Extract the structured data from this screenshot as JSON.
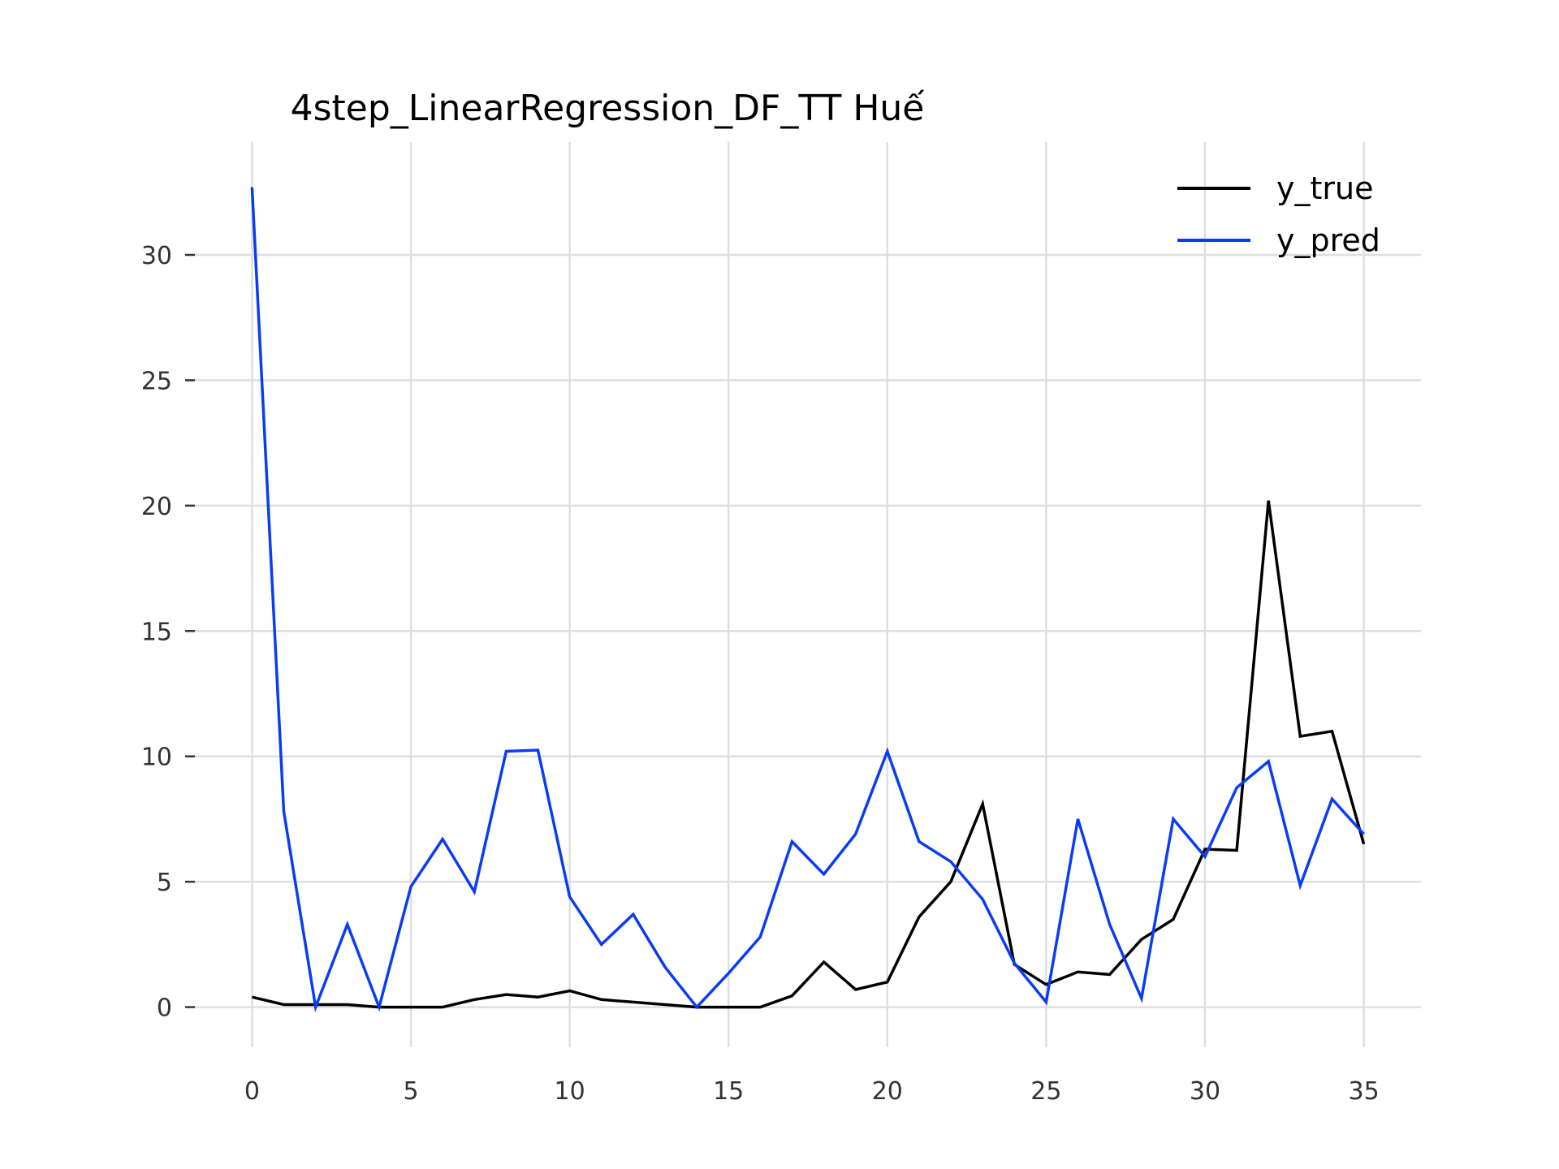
{
  "chart_data": {
    "type": "line",
    "title": "4step_LinearRegression_DF_TT Huế",
    "xlabel": "",
    "ylabel": "",
    "xlim": [
      -1.8,
      36.8
    ],
    "ylim": [
      -1.6,
      34.5
    ],
    "xticks": [
      0,
      5,
      10,
      15,
      20,
      25,
      30,
      35
    ],
    "yticks": [
      0,
      5,
      10,
      15,
      20,
      25,
      30
    ],
    "grid": true,
    "legend_position": "top-right",
    "x": [
      0,
      1,
      2,
      3,
      4,
      5,
      6,
      7,
      8,
      9,
      10,
      11,
      12,
      13,
      14,
      15,
      16,
      17,
      18,
      19,
      20,
      21,
      22,
      23,
      24,
      25,
      26,
      27,
      28,
      29,
      30,
      31,
      32,
      33,
      34,
      35
    ],
    "series": [
      {
        "name": "y_true",
        "color": "#000000",
        "values": [
          0.4,
          0.1,
          0.1,
          0.1,
          0.0,
          0.0,
          0.0,
          0.3,
          0.5,
          0.4,
          0.65,
          0.3,
          0.2,
          0.1,
          0.0,
          0.0,
          0.0,
          0.45,
          1.8,
          0.7,
          1.0,
          3.6,
          5.0,
          8.1,
          1.7,
          0.9,
          1.4,
          1.3,
          2.7,
          3.5,
          6.3,
          6.25,
          20.2,
          10.8,
          11.0,
          6.5
        ]
      },
      {
        "name": "y_pred",
        "color": "#0a3cf5",
        "values": [
          32.7,
          7.8,
          0.0,
          3.3,
          0.0,
          4.8,
          6.7,
          4.6,
          10.2,
          10.25,
          4.4,
          2.5,
          3.7,
          1.6,
          0.0,
          1.35,
          2.8,
          6.6,
          5.3,
          6.9,
          10.2,
          6.6,
          5.8,
          4.3,
          1.75,
          0.2,
          7.5,
          3.3,
          0.35,
          7.5,
          6.0,
          8.75,
          9.8,
          4.85,
          8.3,
          6.9
        ]
      }
    ]
  }
}
